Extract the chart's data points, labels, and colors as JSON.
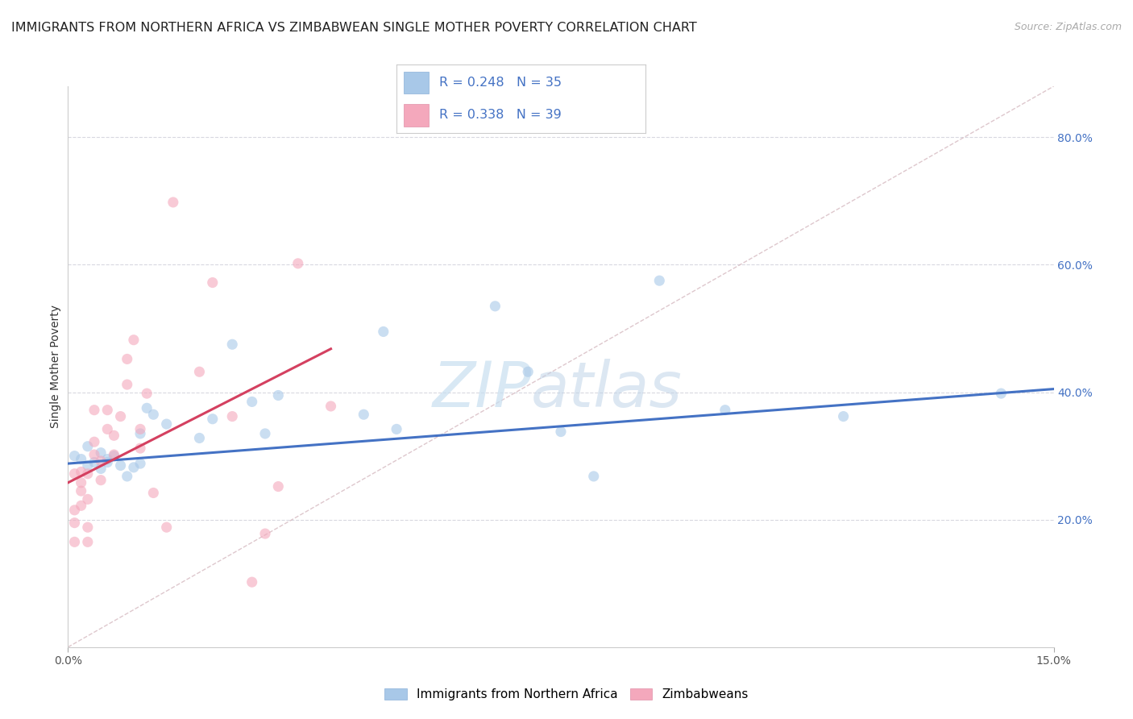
{
  "title": "IMMIGRANTS FROM NORTHERN AFRICA VS ZIMBABWEAN SINGLE MOTHER POVERTY CORRELATION CHART",
  "source": "Source: ZipAtlas.com",
  "ylabel": "Single Mother Poverty",
  "x_min": 0.0,
  "x_max": 0.15,
  "y_min": 0.0,
  "y_max": 0.88,
  "legend1_R": "0.248",
  "legend1_N": "35",
  "legend2_R": "0.338",
  "legend2_N": "39",
  "legend_label1": "Immigrants from Northern Africa",
  "legend_label2": "Zimbabweans",
  "y_ticks": [
    0.2,
    0.4,
    0.6,
    0.8
  ],
  "y_tick_labels": [
    "20.0%",
    "40.0%",
    "60.0%",
    "80.0%"
  ],
  "x_tick_positions": [
    0.0,
    0.15
  ],
  "x_tick_labels": [
    "0.0%",
    "15.0%"
  ],
  "blue_color": "#a8c8e8",
  "pink_color": "#f4a8bc",
  "blue_line_color": "#4472c4",
  "pink_line_color": "#d44060",
  "watermark_part1": "ZIP",
  "watermark_part2": "atlas",
  "blue_scatter_x": [
    0.001,
    0.002,
    0.003,
    0.003,
    0.004,
    0.005,
    0.005,
    0.006,
    0.006,
    0.007,
    0.008,
    0.009,
    0.01,
    0.011,
    0.011,
    0.012,
    0.013,
    0.015,
    0.02,
    0.022,
    0.025,
    0.028,
    0.03,
    0.032,
    0.045,
    0.048,
    0.05,
    0.065,
    0.07,
    0.075,
    0.08,
    0.09,
    0.1,
    0.118,
    0.142
  ],
  "blue_scatter_y": [
    0.3,
    0.295,
    0.285,
    0.315,
    0.29,
    0.305,
    0.28,
    0.29,
    0.295,
    0.3,
    0.285,
    0.268,
    0.282,
    0.288,
    0.335,
    0.375,
    0.365,
    0.35,
    0.328,
    0.358,
    0.475,
    0.385,
    0.335,
    0.395,
    0.365,
    0.495,
    0.342,
    0.535,
    0.432,
    0.338,
    0.268,
    0.575,
    0.372,
    0.362,
    0.398
  ],
  "pink_scatter_x": [
    0.001,
    0.001,
    0.001,
    0.001,
    0.002,
    0.002,
    0.002,
    0.002,
    0.003,
    0.003,
    0.003,
    0.003,
    0.004,
    0.004,
    0.004,
    0.005,
    0.005,
    0.006,
    0.006,
    0.007,
    0.007,
    0.008,
    0.009,
    0.009,
    0.01,
    0.011,
    0.011,
    0.012,
    0.013,
    0.015,
    0.016,
    0.02,
    0.022,
    0.025,
    0.028,
    0.03,
    0.032,
    0.035,
    0.04
  ],
  "pink_scatter_y": [
    0.165,
    0.195,
    0.215,
    0.272,
    0.222,
    0.245,
    0.258,
    0.275,
    0.165,
    0.188,
    0.232,
    0.272,
    0.302,
    0.322,
    0.372,
    0.262,
    0.292,
    0.342,
    0.372,
    0.302,
    0.332,
    0.362,
    0.412,
    0.452,
    0.482,
    0.312,
    0.342,
    0.398,
    0.242,
    0.188,
    0.698,
    0.432,
    0.572,
    0.362,
    0.102,
    0.178,
    0.252,
    0.602,
    0.378
  ],
  "blue_trend_x": [
    0.0,
    0.15
  ],
  "blue_trend_y": [
    0.288,
    0.405
  ],
  "pink_trend_x": [
    0.0,
    0.04
  ],
  "pink_trend_y": [
    0.258,
    0.468
  ],
  "diag_line_x": [
    0.0,
    0.15
  ],
  "diag_line_y": [
    0.0,
    0.88
  ],
  "background_color": "#ffffff",
  "grid_color": "#d8d8e0",
  "title_fontsize": 11.5,
  "source_fontsize": 9,
  "axis_label_fontsize": 10,
  "tick_fontsize": 10,
  "scatter_alpha": 0.6,
  "scatter_size": 90,
  "right_tick_color": "#4472c4"
}
